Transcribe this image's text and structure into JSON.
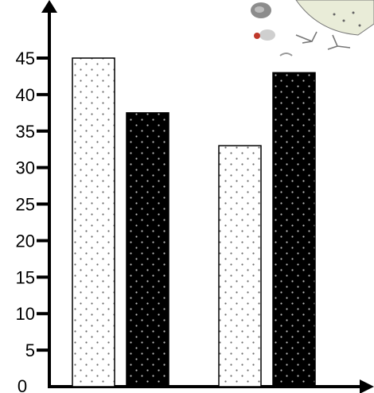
{
  "chart_data": {
    "type": "bar",
    "categories": [
      "",
      ""
    ],
    "series": [
      {
        "values": [
          45,
          33
        ],
        "pattern": "white-dotted",
        "color": "#ffffff"
      },
      {
        "values": [
          37.5,
          43
        ],
        "pattern": "black-dotted",
        "color": "#000000"
      }
    ],
    "yticks": [
      0,
      5,
      10,
      15,
      20,
      25,
      30,
      35,
      40,
      45
    ],
    "ylim": [
      0,
      50
    ],
    "grid": false,
    "title": "",
    "xlabel": "",
    "ylabel": ""
  },
  "decoration": {
    "icon": "bird-and-shells-icon"
  }
}
